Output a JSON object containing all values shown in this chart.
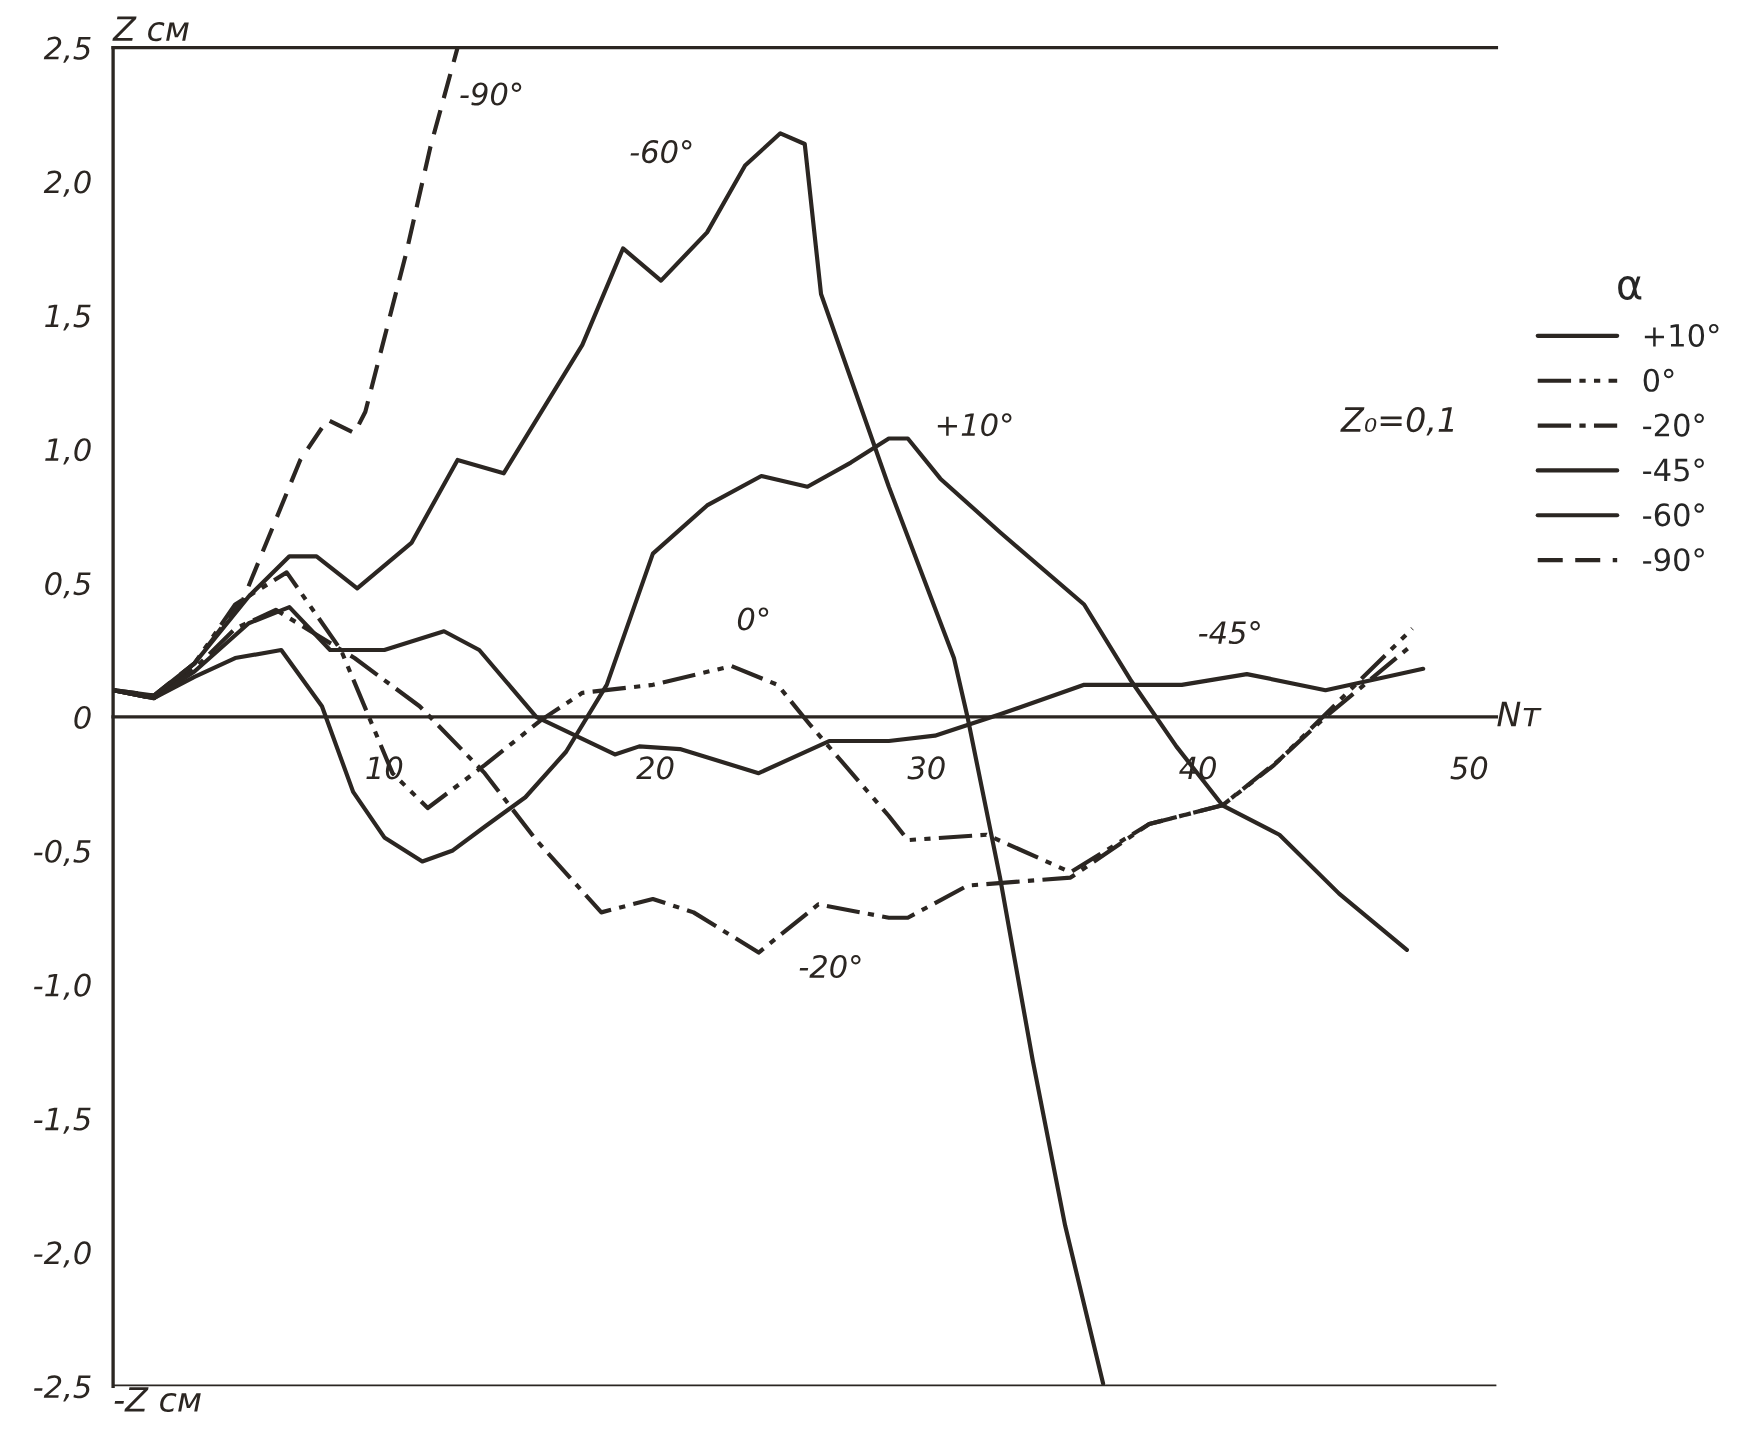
{
  "chart_data": {
    "type": "line",
    "xlabel": "Nт",
    "ylabel": "Z см",
    "legend_title": "α",
    "legend": "right",
    "grid": false,
    "xlim": [
      0,
      51
    ],
    "xticks": [
      10,
      20,
      30,
      40,
      50
    ],
    "ylim": [
      -2.5,
      2.5
    ],
    "yticks": [
      {
        "value": 2.5,
        "label": "2,5"
      },
      {
        "value": 2.0,
        "label": "2,0"
      },
      {
        "value": 1.5,
        "label": "1,5"
      },
      {
        "value": 1.0,
        "label": "1,0"
      },
      {
        "value": 0.5,
        "label": "0,5"
      },
      0,
      {
        "value": -0.5,
        "label": "-0,5"
      },
      {
        "value": -1.0,
        "label": "-1,0"
      },
      {
        "value": -1.5,
        "label": "-1,5"
      },
      {
        "value": -2.0,
        "label": "-2,0"
      },
      {
        "value": -2.5,
        "label": "-2,5"
      }
    ],
    "ref_lines": [
      {
        "axis": "y",
        "value": -2.5,
        "label": "-Z см"
      }
    ],
    "annotations": [
      {
        "text": "-90°",
        "x": 11.7,
        "y": 2.13
      },
      {
        "text": "-60°",
        "x": 23.3,
        "y": 2.06
      },
      {
        "text": "+10°",
        "x": 29.3,
        "y": 1.04
      },
      {
        "text": "0°",
        "x": 22.8,
        "y": 0.19
      },
      {
        "text": "-20°",
        "x": 23.8,
        "y": -0.88
      },
      {
        "text": "-45°",
        "x": 41.8,
        "y": 0.16
      },
      "Z₀=0,1"
    ],
    "series": [
      {
        "name": "+10°",
        "color": "#2b2622",
        "line_style": "solid",
        "x": [
          0,
          1.5,
          3,
          4.5,
          6.2,
          7.7,
          8.85,
          10,
          11.4,
          12.5,
          13.7,
          15.2,
          16.7,
          18.2,
          19.9,
          21.9,
          23.9,
          25.6,
          27.2,
          28.6,
          29.3,
          30.5,
          32.7,
          35.8,
          37.5,
          39.2,
          40.9,
          43,
          45.2,
          47.7
        ],
        "values": [
          0.1,
          0.07,
          0.15,
          0.22,
          0.25,
          0.04,
          -0.28,
          -0.45,
          -0.54,
          -0.5,
          -0.41,
          -0.3,
          -0.13,
          0.12,
          0.61,
          0.79,
          0.9,
          0.86,
          0.95,
          1.04,
          1.04,
          0.89,
          0.69,
          0.42,
          0.14,
          -0.11,
          -0.33,
          -0.44,
          -0.66,
          -0.87
        ]
      },
      {
        "name": "0°",
        "color": "#2b2622",
        "line_style": "dashdotdot",
        "x": [
          0,
          1.5,
          3,
          4.5,
          6.4,
          8.4,
          10.3,
          11.6,
          13.7,
          15.8,
          17.3,
          19.9,
          22.8,
          24.5,
          25.7,
          28.6,
          29.3,
          32.2,
          35.3,
          38.2,
          40.9,
          42.8,
          44.7,
          47.9
        ],
        "values": [
          0.1,
          0.07,
          0.2,
          0.42,
          0.54,
          0.25,
          -0.21,
          -0.34,
          -0.18,
          -0.01,
          0.09,
          0.12,
          0.19,
          0.12,
          -0.03,
          -0.37,
          -0.46,
          -0.44,
          -0.58,
          -0.4,
          -0.33,
          -0.18,
          0.01,
          0.33
        ]
      },
      {
        "name": "-20°",
        "color": "#2b2622",
        "line_style": "dashdot",
        "x": [
          0,
          1.5,
          3,
          4.5,
          6,
          8.9,
          11.3,
          13.7,
          15.6,
          18,
          19.9,
          21.4,
          23.8,
          26,
          28.6,
          29.3,
          31.5,
          35.3,
          38.2,
          40.9,
          43,
          44.7,
          47.9
        ],
        "values": [
          0.1,
          0.07,
          0.18,
          0.33,
          0.4,
          0.22,
          0.04,
          -0.21,
          -0.46,
          -0.73,
          -0.68,
          -0.73,
          -0.88,
          -0.7,
          -0.75,
          -0.75,
          -0.63,
          -0.6,
          -0.4,
          -0.33,
          -0.16,
          0.0,
          0.27
        ]
      },
      {
        "name": "-45°",
        "color": "#2b2622",
        "line_style": "solid",
        "x": [
          0,
          1.5,
          3,
          5,
          6.5,
          8,
          10,
          12.2,
          13.5,
          15.6,
          18.5,
          19.4,
          20.9,
          23.8,
          26.4,
          28.6,
          30.3,
          32.7,
          35.8,
          39.4,
          41.8,
          44.7,
          48.3
        ],
        "values": [
          0.1,
          0.07,
          0.17,
          0.35,
          0.41,
          0.25,
          0.25,
          0.32,
          0.25,
          0.0,
          -0.14,
          -0.11,
          -0.12,
          -0.21,
          -0.09,
          -0.09,
          -0.07,
          0.01,
          0.12,
          0.12,
          0.16,
          0.1,
          0.18
        ]
      },
      {
        "name": "-60°",
        "color": "#2b2622",
        "line_style": "solid",
        "x": [
          0,
          1.5,
          3,
          5,
          6.5,
          7.5,
          9,
          11,
          12.7,
          14.4,
          17.3,
          18.8,
          20.2,
          21.9,
          23.3,
          24.6,
          25.5,
          26.1,
          28.6,
          31,
          31.5,
          32.7,
          33.9,
          35.1,
          36.5
        ],
        "values": [
          0.1,
          0.08,
          0.2,
          0.45,
          0.6,
          0.6,
          0.48,
          0.65,
          0.96,
          0.91,
          1.39,
          1.75,
          1.63,
          1.81,
          2.06,
          2.18,
          2.14,
          1.58,
          0.86,
          0.22,
          0.0,
          -0.6,
          -1.28,
          -1.9,
          -2.49
        ]
      },
      {
        "name": "-90°",
        "color": "#2b2622",
        "line_style": "dashed",
        "x": [
          0,
          1.5,
          3,
          4.8,
          6.9,
          7.9,
          8.9,
          9.3,
          10.8,
          11.7,
          12.7
        ],
        "values": [
          0.1,
          0.08,
          0.2,
          0.44,
          0.96,
          1.11,
          1.06,
          1.14,
          1.73,
          2.13,
          2.5
        ]
      }
    ]
  }
}
